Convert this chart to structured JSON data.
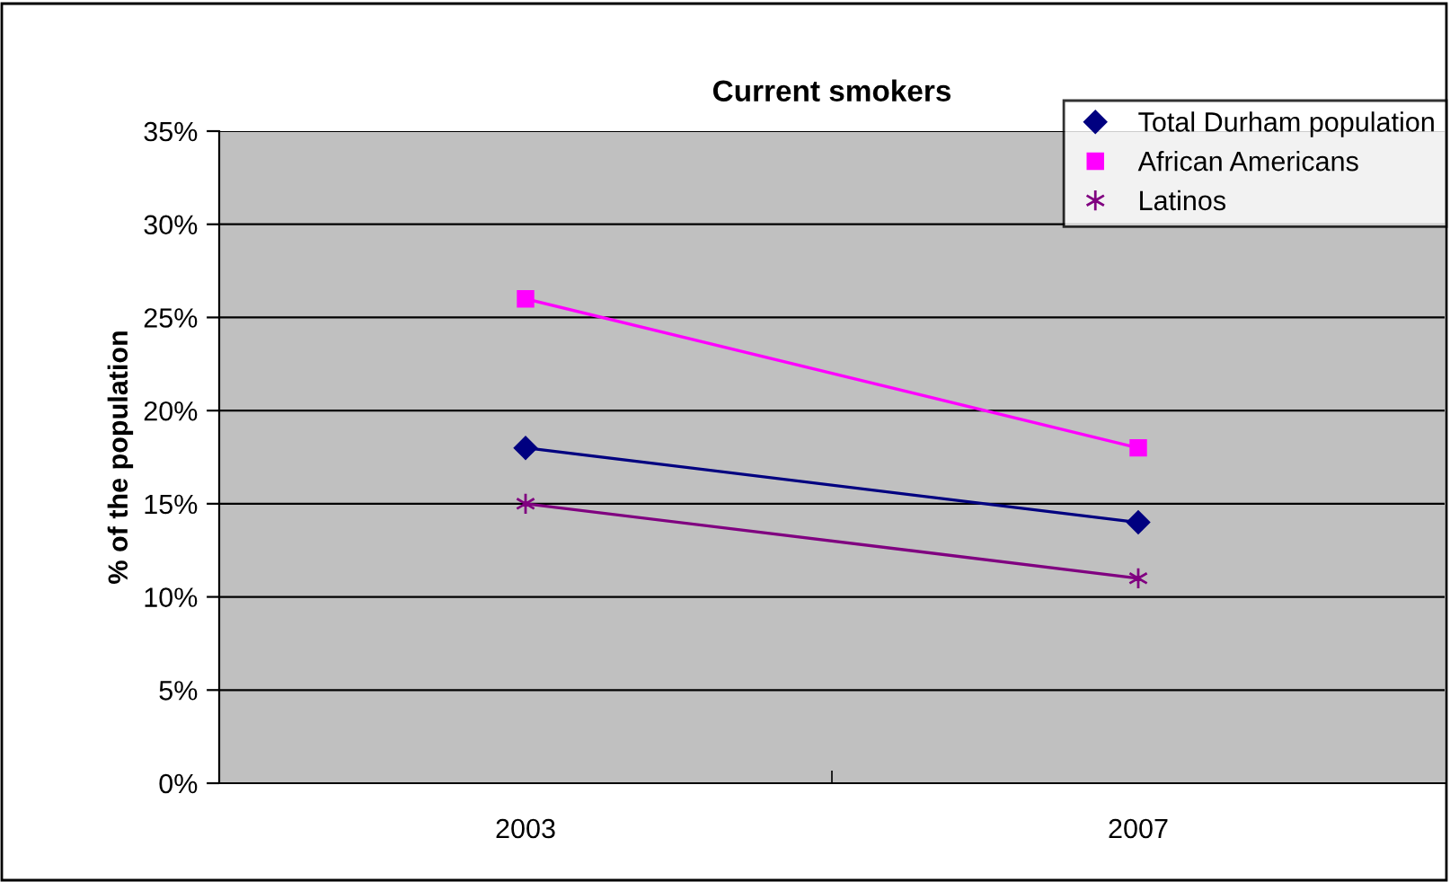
{
  "chart_data": {
    "type": "line",
    "title": "Current smokers",
    "ylabel": "% of the population",
    "categories": [
      "2003",
      "2007"
    ],
    "series": [
      {
        "name": "Total Durham population",
        "color": "#000080",
        "marker": "diamond",
        "values": [
          18,
          14
        ]
      },
      {
        "name": "African Americans",
        "color": "#ff00ff",
        "marker": "square",
        "values": [
          26,
          18
        ]
      },
      {
        "name": "Latinos",
        "color": "#800080",
        "marker": "cross",
        "values": [
          15,
          11
        ]
      }
    ],
    "ylim": [
      0,
      35
    ],
    "yticks": [
      {
        "value": 0,
        "label": "0%"
      },
      {
        "value": 5,
        "label": "5%"
      },
      {
        "value": 10,
        "label": "10%"
      },
      {
        "value": 15,
        "label": "15%"
      },
      {
        "value": 20,
        "label": "20%"
      },
      {
        "value": 25,
        "label": "25%"
      },
      {
        "value": 30,
        "label": "30%"
      },
      {
        "value": 35,
        "label": "35%"
      }
    ],
    "grid": "y",
    "legend": "top right",
    "line_style": "solid"
  }
}
